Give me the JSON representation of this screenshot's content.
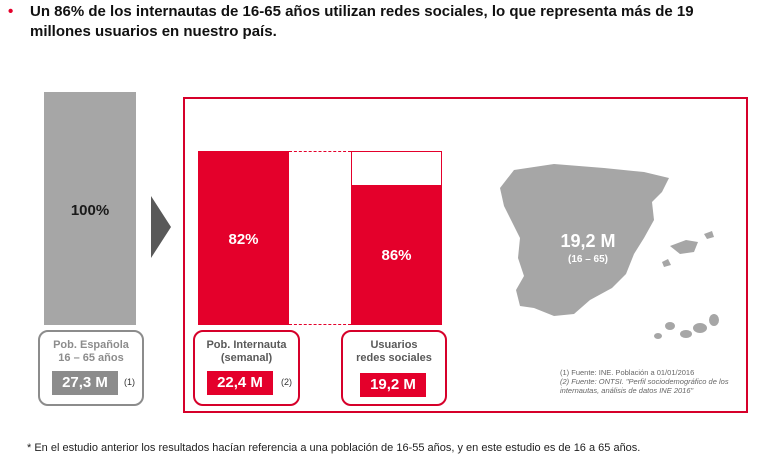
{
  "headline": {
    "bullet": "•",
    "text": "Un 86% de los internautas de 16-65 años utilizan redes sociales, lo que representa más de 19 millones usuarios en nuestro país."
  },
  "chart_data": {
    "type": "bar",
    "title": "",
    "bars": [
      {
        "category": "Pob. Española 16 – 65 años",
        "percent": 100,
        "percent_label": "100%",
        "value": 27.3,
        "value_label": "27,3 M",
        "note": "(1)",
        "color": "#a6a6a6"
      },
      {
        "category": "Pob. Internauta (semanal)",
        "percent": 82,
        "percent_label": "82%",
        "value": 22.4,
        "value_label": "22,4 M",
        "note": "(2)",
        "color": "#e4002b"
      },
      {
        "category": "Usuarios redes sociales",
        "percent": 86,
        "percent_label": "86%",
        "value": 19.2,
        "value_label": "19,2 M",
        "note": "",
        "color": "#e4002b"
      }
    ]
  },
  "boxes": {
    "spain": {
      "line1": "Pob. Española",
      "line2": "16 – 65 años",
      "value": "27,3 M",
      "note": "(1)"
    },
    "internet": {
      "line1": "Pob. Internauta",
      "line2": "(semanal)",
      "value": "22,4 M",
      "note": "(2)"
    },
    "social": {
      "line1": "Usuarios",
      "line2": "redes sociales",
      "value": "19,2 M"
    }
  },
  "map": {
    "value": "19,2 M",
    "sub": "(16 – 65)",
    "color": "#a6a6a6"
  },
  "sources": {
    "s1": "(1) Fuente: INE. Población a 01/01/2016",
    "s2": "(2) Fuente: ONTSI. \"Perfil sociodemográfico de los internautas, análisis de datos INE 2016\""
  },
  "footnote": "* En el estudio anterior los resultados hacían referencia a una población de 16-55 años, y en este estudio es de 16 a 65 años.",
  "colors": {
    "accent": "#e4002b",
    "grey": "#a6a6a6",
    "dark_grey": "#8c8c8c"
  }
}
